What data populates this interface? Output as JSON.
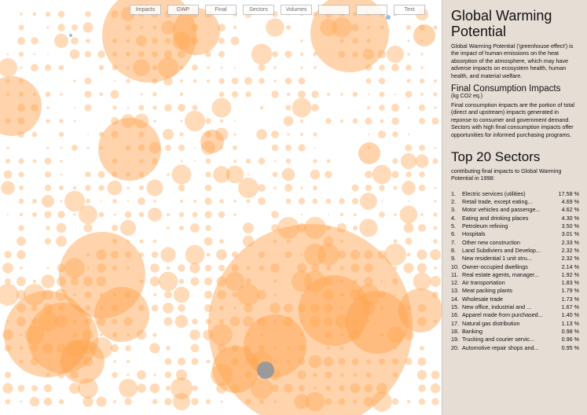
{
  "toolbar": {
    "buttons": [
      "Impacts",
      "GWP",
      "Final",
      "Sectors",
      "Volumes",
      "Text"
    ]
  },
  "panel": {
    "title": "Global Warming Potential",
    "description": "Global Warming Potential ('greenhouse effect') is the impact of human emissions on the heat absorption of the atmosphere, which may have adverse impacts on ecosystem health, human health, and material welfare.",
    "subtitle": "Final Consumption Impacts",
    "unit": "(kg CO2 eq.)",
    "explanation": "Final consumption impacts are the portion of total (direct and upstream) impacts generated in reponse to consumer and government demand.  Sectors with high final consumption impacts offer opportunities for informed purchasing programs.",
    "top_title": "Top 20 Sectors",
    "top_subtitle": "contributing final impacts to Global Warming Potential in 1998:",
    "sectors": [
      [
        "1.",
        "Electric services (utilities)",
        "17.58 %"
      ],
      [
        "2.",
        "Retail trade, except eating...",
        "4.69 %"
      ],
      [
        "3.",
        "Motor vehicles and passenge...",
        "4.62 %"
      ],
      [
        "4.",
        "Eating and drinking places",
        "4.30 %"
      ],
      [
        "5.",
        "Petroleum refining",
        "3.50 %"
      ],
      [
        "6.",
        "Hospitals",
        "3.01 %"
      ],
      [
        "7.",
        "Other new construction",
        "2.33 %"
      ],
      [
        "8.",
        "Land Subdiviers and Develop...",
        "2.32 %"
      ],
      [
        "9.",
        "New residential 1 unit stru...",
        "2.32 %"
      ],
      [
        "10.",
        "Owner-occupied dwellings",
        "2.14 %"
      ],
      [
        "11.",
        "Real estate agents, manager...",
        "1.92 %"
      ],
      [
        "12.",
        "Air transportation",
        "1.83 %"
      ],
      [
        "13.",
        "Meat packing plants",
        "1.79 %"
      ],
      [
        "14.",
        "Wholesale trade",
        "1.73 %"
      ],
      [
        "15.",
        "New office, industrial and ...",
        "1.67 %"
      ],
      [
        "16.",
        "Apparel made from purchased...",
        "1.40 %"
      ],
      [
        "17.",
        "Natural gas distribution",
        "1.13 %"
      ],
      [
        "18.",
        "Banking",
        "0.98 %"
      ],
      [
        "19.",
        "Trucking and courier servic...",
        "0.96 %"
      ],
      [
        "20.",
        "Automotive repair shops and...",
        "0.95 %"
      ]
    ]
  }
}
